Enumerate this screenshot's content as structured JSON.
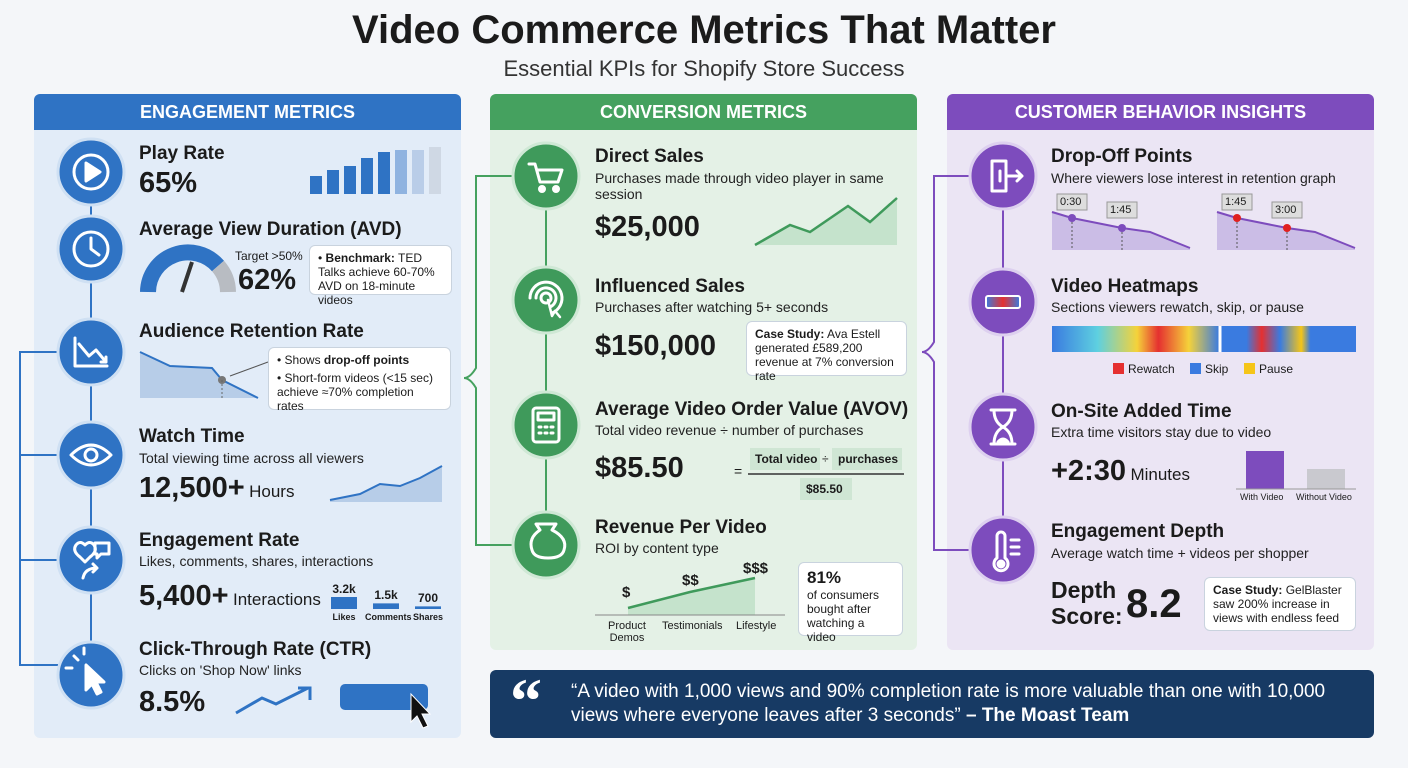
{
  "header": {
    "title": "Video Commerce Metrics That Matter",
    "subtitle": "Essential KPIs for Shopify Store Success"
  },
  "engagement": {
    "heading": "ENGAGEMENT METRICS",
    "play_rate": {
      "title": "Play Rate",
      "value": "65%"
    },
    "avd": {
      "title": "Average View Duration (AVD)",
      "target": "Target >50%",
      "value": "62%",
      "note_label": "Benchmark:",
      "note": "TED Talks achieve 60-70% AVD on 18-minute videos"
    },
    "retention": {
      "title": "Audience Retention Rate",
      "bullets": [
        {
          "text": "Shows",
          "bold": "drop-off points"
        },
        {
          "text": "Short-form videos (<15 sec) achieve ≈70% completion rates"
        }
      ]
    },
    "watch_time": {
      "title": "Watch Time",
      "description": "Total viewing time across all viewers",
      "value": "12,500+",
      "unit": "Hours"
    },
    "engagement_rate": {
      "title": "Engagement Rate",
      "description": "Likes, comments, shares, interactions",
      "value": "5,400+",
      "unit": "Interactions",
      "bars": {
        "categories": [
          "Likes",
          "Comments",
          "Shares"
        ],
        "values": [
          3200,
          1500,
          700
        ],
        "value_labels": [
          "3.2k",
          "1.5k",
          "700"
        ]
      }
    },
    "ctr": {
      "title": "Click-Through Rate (CTR)",
      "description": "Clicks on 'Shop Now' links",
      "value": "8.5%"
    }
  },
  "conversion": {
    "heading": "CONVERSION METRICS",
    "direct_sales": {
      "title": "Direct Sales",
      "description": "Purchases made through video player in same session",
      "value": "$25,000"
    },
    "influenced_sales": {
      "title": "Influenced Sales",
      "description": "Purchases after watching 5+ seconds",
      "value": "$150,000",
      "note_label": "Case Study:",
      "note": "Ava Estell generated £589,200 revenue at 7% conversion rate"
    },
    "avov": {
      "title": "Average Video Order Value (AVOV)",
      "description": "Total video revenue ÷ number of purchases",
      "value": "$85.50",
      "equals": "=",
      "numerator": "Total video",
      "divide": "÷",
      "denominator_part": "purchases",
      "result": "$85.50"
    },
    "revenue_per_video": {
      "title": "Revenue Per Video",
      "description": "ROI by content type",
      "tiers": [
        "$",
        "$$",
        "$$$"
      ],
      "categories": [
        "Product Demos",
        "Testimonials",
        "Lifestyle"
      ],
      "stat_value": "81%",
      "stat_text": "of consumers bought after watching a video"
    }
  },
  "behavior": {
    "heading": "CUSTOMER BEHAVIOR INSIGHTS",
    "drop_off": {
      "title": "Drop-Off Points",
      "description": "Where viewers lose interest in retention graph",
      "markers": [
        "0:30",
        "1:45",
        "1:45",
        "3:00"
      ]
    },
    "heatmaps": {
      "title": "Video Heatmaps",
      "description": "Sections viewers rewatch, skip, or pause",
      "legend": [
        "Rewatch",
        "Skip",
        "Pause"
      ]
    },
    "added_time": {
      "title": "On-Site Added Time",
      "description": "Extra time visitors stay due to video",
      "value": "+2:30",
      "unit": "Minutes",
      "bars": [
        "With Video",
        "Without Video"
      ]
    },
    "depth": {
      "title": "Engagement Depth",
      "description": "Average watch time + videos per shopper",
      "label": "Depth Score:",
      "value": "8.2",
      "note_label": "Case Study:",
      "note": "GelBlaster saw 200% increase in views with endless feed"
    }
  },
  "quote": {
    "text": "“A video with 1,000 views and 90% completion rate is more valuable than one with 10,000 views where everyone leaves after 3 seconds”",
    "author": "– The Moast Team"
  }
}
